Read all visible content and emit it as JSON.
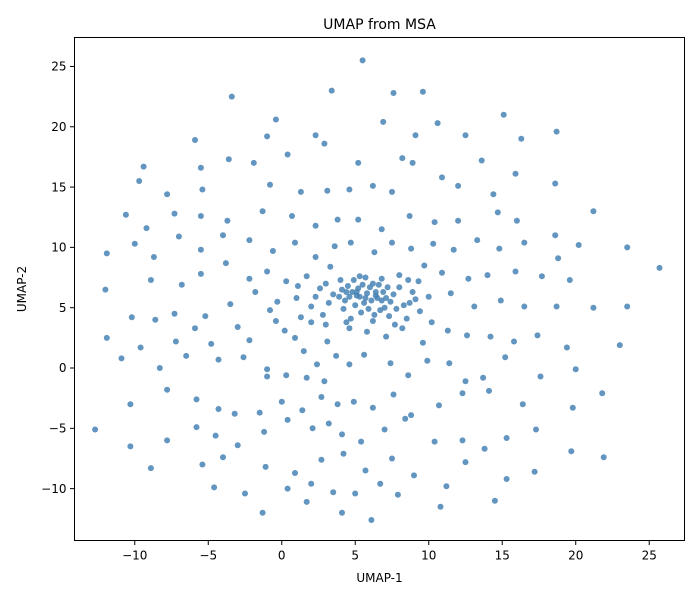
{
  "chart_data": {
    "type": "scatter",
    "title": "UMAP from MSA",
    "xlabel": "UMAP-1",
    "ylabel": "UMAP-2",
    "xlim": [
      -14.1,
      27.4
    ],
    "ylim": [
      -14.3,
      27.4
    ],
    "xticks": [
      -10,
      -5,
      0,
      5,
      10,
      15,
      20,
      25
    ],
    "xtick_labels": [
      "−10",
      "−5",
      "0",
      "5",
      "10",
      "15",
      "20",
      "25"
    ],
    "yticks": [
      -10,
      -5,
      0,
      5,
      10,
      15,
      20,
      25
    ],
    "ytick_labels": [
      "−10",
      "−5",
      "0",
      "5",
      "10",
      "15",
      "20",
      "25"
    ],
    "grid": false,
    "legend": "none",
    "marker_color": "#4682b4",
    "series": [
      {
        "points": [
          [
            5.5,
            25.5
          ],
          [
            -3.4,
            22.5
          ],
          [
            3.4,
            23.0
          ],
          [
            7.6,
            22.8
          ],
          [
            9.6,
            22.9
          ],
          [
            15.1,
            21.0
          ],
          [
            -0.4,
            20.6
          ],
          [
            6.9,
            20.4
          ],
          [
            2.3,
            19.3
          ],
          [
            2.9,
            18.6
          ],
          [
            9.1,
            19.3
          ],
          [
            10.6,
            20.3
          ],
          [
            -1.0,
            19.2
          ],
          [
            -5.9,
            18.9
          ],
          [
            12.5,
            19.3
          ],
          [
            16.3,
            19.0
          ],
          [
            18.7,
            19.6
          ],
          [
            -9.4,
            16.7
          ],
          [
            -5.5,
            16.6
          ],
          [
            -3.6,
            17.3
          ],
          [
            -1.9,
            17.0
          ],
          [
            0.4,
            17.7
          ],
          [
            5.2,
            17.0
          ],
          [
            8.2,
            17.4
          ],
          [
            8.9,
            17.0
          ],
          [
            13.6,
            17.2
          ],
          [
            -9.7,
            15.5
          ],
          [
            -7.8,
            14.4
          ],
          [
            -5.4,
            14.8
          ],
          [
            -0.8,
            15.2
          ],
          [
            1.3,
            14.6
          ],
          [
            3.1,
            14.7
          ],
          [
            4.6,
            14.8
          ],
          [
            6.2,
            15.1
          ],
          [
            7.5,
            14.6
          ],
          [
            10.9,
            15.8
          ],
          [
            12.0,
            15.1
          ],
          [
            14.4,
            14.4
          ],
          [
            15.9,
            16.1
          ],
          [
            18.6,
            15.3
          ],
          [
            -10.6,
            12.7
          ],
          [
            -9.2,
            11.6
          ],
          [
            -7.3,
            12.8
          ],
          [
            -5.5,
            12.6
          ],
          [
            -3.7,
            12.2
          ],
          [
            -1.3,
            13.0
          ],
          [
            0.7,
            12.6
          ],
          [
            2.3,
            11.8
          ],
          [
            3.8,
            12.3
          ],
          [
            5.2,
            12.3
          ],
          [
            6.8,
            11.5
          ],
          [
            8.7,
            12.6
          ],
          [
            10.4,
            12.1
          ],
          [
            12.0,
            12.2
          ],
          [
            14.7,
            12.9
          ],
          [
            16.0,
            12.2
          ],
          [
            18.6,
            11.0
          ],
          [
            21.2,
            13.0
          ],
          [
            -11.9,
            9.5
          ],
          [
            -10.0,
            10.3
          ],
          [
            -8.7,
            9.2
          ],
          [
            -7.0,
            10.9
          ],
          [
            -5.5,
            9.8
          ],
          [
            -4.0,
            11.0
          ],
          [
            -2.2,
            10.6
          ],
          [
            -0.6,
            9.7
          ],
          [
            0.9,
            10.4
          ],
          [
            2.3,
            9.2
          ],
          [
            3.6,
            10.1
          ],
          [
            4.7,
            10.4
          ],
          [
            6.3,
            9.6
          ],
          [
            7.5,
            10.4
          ],
          [
            8.8,
            9.9
          ],
          [
            10.3,
            10.3
          ],
          [
            11.7,
            9.8
          ],
          [
            13.3,
            10.6
          ],
          [
            14.8,
            9.9
          ],
          [
            16.5,
            10.4
          ],
          [
            18.8,
            9.1
          ],
          [
            20.2,
            10.2
          ],
          [
            23.5,
            10.0
          ],
          [
            25.7,
            8.3
          ],
          [
            -12.0,
            6.5
          ],
          [
            -8.9,
            7.3
          ],
          [
            -6.8,
            6.9
          ],
          [
            -5.5,
            7.8
          ],
          [
            -3.8,
            8.7
          ],
          [
            -2.2,
            7.4
          ],
          [
            -1.0,
            8.0
          ],
          [
            0.3,
            7.2
          ],
          [
            1.7,
            7.6
          ],
          [
            3.0,
            7.0
          ],
          [
            4.0,
            7.3
          ],
          [
            5.3,
            7.6
          ],
          [
            6.8,
            7.4
          ],
          [
            8.0,
            7.7
          ],
          [
            9.3,
            7.2
          ],
          [
            10.9,
            7.9
          ],
          [
            12.7,
            7.4
          ],
          [
            14.0,
            7.7
          ],
          [
            15.9,
            8.0
          ],
          [
            17.7,
            7.6
          ],
          [
            19.6,
            7.3
          ],
          [
            -10.2,
            4.2
          ],
          [
            -8.6,
            4.0
          ],
          [
            -7.3,
            4.5
          ],
          [
            -5.2,
            4.3
          ],
          [
            -3.5,
            5.3
          ],
          [
            -1.8,
            6.3
          ],
          [
            -0.3,
            5.5
          ],
          [
            1.0,
            5.8
          ],
          [
            2.3,
            5.9
          ],
          [
            3.5,
            6.1
          ],
          [
            4.4,
            6.3
          ],
          [
            5.1,
            6.0
          ],
          [
            5.7,
            5.8
          ],
          [
            6.4,
            6.3
          ],
          [
            7.4,
            5.5
          ],
          [
            8.7,
            5.4
          ],
          [
            10.0,
            5.9
          ],
          [
            11.5,
            6.2
          ],
          [
            13.1,
            5.1
          ],
          [
            14.9,
            5.6
          ],
          [
            16.5,
            5.1
          ],
          [
            18.7,
            5.1
          ],
          [
            21.2,
            5.0
          ],
          [
            23.5,
            5.1
          ],
          [
            -11.9,
            2.5
          ],
          [
            -9.6,
            1.7
          ],
          [
            -7.2,
            2.2
          ],
          [
            -5.9,
            3.3
          ],
          [
            -4.8,
            2.0
          ],
          [
            -3.0,
            3.4
          ],
          [
            -2.2,
            2.3
          ],
          [
            -0.4,
            3.9
          ],
          [
            0.9,
            2.5
          ],
          [
            2.0,
            3.8
          ],
          [
            3.1,
            2.2
          ],
          [
            4.6,
            3.3
          ],
          [
            5.8,
            3.0
          ],
          [
            7.1,
            2.6
          ],
          [
            8.2,
            3.3
          ],
          [
            9.6,
            2.1
          ],
          [
            11.3,
            3.1
          ],
          [
            12.6,
            2.7
          ],
          [
            14.2,
            2.6
          ],
          [
            15.8,
            2.2
          ],
          [
            17.4,
            2.7
          ],
          [
            19.4,
            1.7
          ],
          [
            23.0,
            1.9
          ],
          [
            -10.9,
            0.8
          ],
          [
            -8.3,
            0.0
          ],
          [
            -6.5,
            1.0
          ],
          [
            -4.3,
            0.7
          ],
          [
            -2.6,
            0.9
          ],
          [
            -1.0,
            -0.1
          ],
          [
            0.3,
            -0.6
          ],
          [
            1.7,
            -0.8
          ],
          [
            2.9,
            -1.1
          ],
          [
            4.6,
            0.3
          ],
          [
            5.6,
            1.1
          ],
          [
            7.4,
            0.4
          ],
          [
            8.6,
            -0.6
          ],
          [
            9.9,
            0.6
          ],
          [
            11.4,
            0.4
          ],
          [
            12.5,
            -1.1
          ],
          [
            13.7,
            -0.8
          ],
          [
            15.2,
            0.9
          ],
          [
            17.6,
            -0.7
          ],
          [
            20.0,
            -0.1
          ],
          [
            -10.3,
            -3.0
          ],
          [
            -7.8,
            -1.8
          ],
          [
            -5.8,
            -2.6
          ],
          [
            -4.3,
            -3.4
          ],
          [
            -3.2,
            -3.8
          ],
          [
            -1.5,
            -3.7
          ],
          [
            0.0,
            -2.8
          ],
          [
            1.4,
            -3.5
          ],
          [
            2.7,
            -2.4
          ],
          [
            3.8,
            -3.0
          ],
          [
            4.9,
            -2.8
          ],
          [
            6.2,
            -3.3
          ],
          [
            7.6,
            -2.2
          ],
          [
            8.8,
            -3.9
          ],
          [
            10.7,
            -3.1
          ],
          [
            12.3,
            -2.1
          ],
          [
            14.1,
            -1.9
          ],
          [
            16.4,
            -3.0
          ],
          [
            19.8,
            -3.3
          ],
          [
            21.8,
            -2.1
          ],
          [
            -12.7,
            -5.1
          ],
          [
            -10.3,
            -6.5
          ],
          [
            -7.8,
            -6.0
          ],
          [
            -5.8,
            -4.9
          ],
          [
            -4.5,
            -5.6
          ],
          [
            -3.0,
            -6.4
          ],
          [
            -1.2,
            -5.3
          ],
          [
            0.4,
            -4.3
          ],
          [
            2.1,
            -5.0
          ],
          [
            3.2,
            -4.6
          ],
          [
            4.1,
            -5.5
          ],
          [
            5.4,
            -6.1
          ],
          [
            7.0,
            -5.1
          ],
          [
            8.4,
            -4.2
          ],
          [
            10.4,
            -6.1
          ],
          [
            12.3,
            -6.0
          ],
          [
            13.8,
            -6.7
          ],
          [
            15.3,
            -5.8
          ],
          [
            17.3,
            -5.1
          ],
          [
            19.7,
            -6.9
          ],
          [
            -8.9,
            -8.3
          ],
          [
            -5.4,
            -8.0
          ],
          [
            -4.0,
            -7.4
          ],
          [
            -1.1,
            -8.2
          ],
          [
            0.9,
            -8.7
          ],
          [
            2.7,
            -7.6
          ],
          [
            4.2,
            -7.1
          ],
          [
            5.7,
            -8.5
          ],
          [
            7.5,
            -7.5
          ],
          [
            9.0,
            -8.9
          ],
          [
            11.2,
            -9.8
          ],
          [
            12.5,
            -7.8
          ],
          [
            15.3,
            -9.2
          ],
          [
            17.2,
            -8.6
          ],
          [
            21.9,
            -7.4
          ],
          [
            -4.6,
            -9.9
          ],
          [
            -2.5,
            -10.4
          ],
          [
            -1.3,
            -12.0
          ],
          [
            0.4,
            -10.0
          ],
          [
            2.0,
            -9.6
          ],
          [
            3.5,
            -10.3
          ],
          [
            5.0,
            -10.4
          ],
          [
            6.7,
            -9.6
          ],
          [
            7.9,
            -10.5
          ],
          [
            10.8,
            -11.5
          ],
          [
            14.5,
            -11.0
          ],
          [
            1.7,
            -11.1
          ],
          [
            4.1,
            -12.0
          ],
          [
            6.1,
            -12.6
          ],
          [
            -1.0,
            -0.7
          ],
          [
            -0.8,
            4.8
          ],
          [
            0.2,
            3.1
          ],
          [
            1.1,
            6.8
          ],
          [
            1.5,
            1.4
          ],
          [
            2.4,
            0.3
          ],
          [
            2.8,
            4.4
          ],
          [
            3.3,
            8.4
          ],
          [
            3.7,
            1.0
          ],
          [
            4.2,
            4.9
          ],
          [
            4.3,
            5.6
          ],
          [
            4.5,
            6.8
          ],
          [
            4.7,
            4.1
          ],
          [
            4.9,
            7.3
          ],
          [
            5.0,
            5.2
          ],
          [
            5.2,
            6.6
          ],
          [
            5.4,
            4.6
          ],
          [
            5.5,
            6.9
          ],
          [
            5.6,
            5.4
          ],
          [
            5.7,
            7.5
          ],
          [
            5.9,
            4.9
          ],
          [
            6.0,
            6.7
          ],
          [
            6.1,
            5.6
          ],
          [
            6.2,
            7.0
          ],
          [
            6.3,
            4.4
          ],
          [
            6.5,
            5.8
          ],
          [
            6.6,
            6.9
          ],
          [
            6.7,
            4.8
          ],
          [
            6.9,
            6.3
          ],
          [
            7.0,
            5.0
          ],
          [
            7.2,
            6.7
          ],
          [
            7.3,
            4.3
          ],
          [
            7.6,
            6.1
          ],
          [
            7.8,
            4.9
          ],
          [
            8.0,
            6.7
          ],
          [
            8.3,
            5.2
          ],
          [
            8.5,
            4.1
          ],
          [
            8.9,
            6.3
          ],
          [
            9.4,
            4.7
          ],
          [
            9.7,
            8.5
          ],
          [
            10.2,
            3.8
          ],
          [
            3.9,
            5.9
          ],
          [
            4.1,
            6.5
          ],
          [
            4.6,
            5.9
          ],
          [
            4.8,
            6.3
          ],
          [
            5.3,
            5.9
          ],
          [
            5.8,
            6.2
          ],
          [
            6.4,
            6.0
          ],
          [
            6.8,
            5.6
          ],
          [
            7.1,
            5.8
          ],
          [
            5.1,
            6.3
          ],
          [
            3.2,
            5.4
          ],
          [
            2.6,
            6.6
          ],
          [
            2.0,
            5.1
          ],
          [
            1.3,
            4.2
          ],
          [
            3.0,
            3.6
          ],
          [
            8.6,
            7.3
          ],
          [
            9.1,
            5.7
          ],
          [
            7.7,
            3.6
          ],
          [
            6.2,
            3.9
          ],
          [
            4.4,
            3.8
          ]
        ]
      }
    ]
  }
}
